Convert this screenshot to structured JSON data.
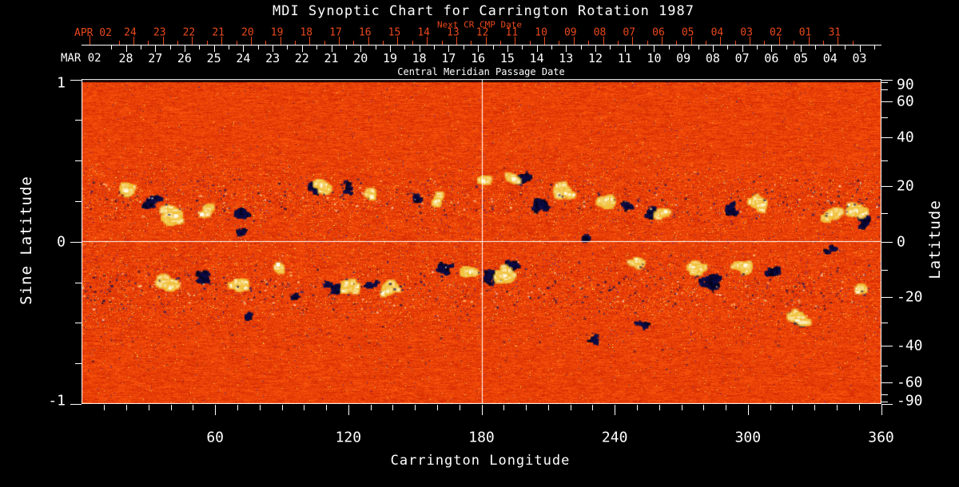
{
  "title": "MDI Synoptic Chart for Carrington Rotation 1987",
  "top_axis": {
    "label": "Next CR CMP Date",
    "month_label": "APR 02",
    "dates": [
      "24",
      "23",
      "22",
      "21",
      "20",
      "19",
      "18",
      "17",
      "16",
      "15",
      "14",
      "13",
      "12",
      "11",
      "10",
      "09",
      "08",
      "07",
      "06",
      "05",
      "04",
      "03",
      "02",
      "01",
      "31"
    ]
  },
  "cmp_axis": {
    "label": "Central Meridian Passage Date",
    "month_label": "MAR 02",
    "dates": [
      "28",
      "27",
      "26",
      "25",
      "24",
      "23",
      "22",
      "21",
      "20",
      "19",
      "18",
      "17",
      "16",
      "15",
      "14",
      "13",
      "12",
      "11",
      "10",
      "09",
      "08",
      "07",
      "06",
      "05",
      "04",
      "03"
    ]
  },
  "x_axis": {
    "label": "Carrington Longitude",
    "major_ticks": [
      "60",
      "120",
      "180",
      "240",
      "300",
      "360"
    ]
  },
  "y_axis_left": {
    "label": "Sine Latitude",
    "major_ticks": [
      "1",
      "0",
      "-1"
    ]
  },
  "y_axis_right": {
    "label": "Latitude",
    "major_ticks": [
      "90",
      "60",
      "40",
      "20",
      "0",
      "-20",
      "-40",
      "-60",
      "-90"
    ]
  },
  "colors": {
    "background": "#000000",
    "foreground": "#ffffff",
    "date_axis_red": "#e8481b",
    "map_base_orange": "#e8440e",
    "map_negative_dark": "#0c0c46",
    "map_positive_bright": "#fffce6",
    "map_positive_fringe": "#f2c23a"
  },
  "chart_data": {
    "type": "heatmap",
    "title": "MDI Synoptic Chart for Carrington Rotation 1987",
    "xlabel": "Carrington Longitude",
    "x_range": [
      0,
      360
    ],
    "x_major_ticks": [
      60,
      120,
      180,
      240,
      300,
      360
    ],
    "x_minor_step": 10,
    "ylabel_left": "Sine Latitude",
    "y_range_sine": [
      -1,
      1
    ],
    "y_left_ticks": [
      1,
      0,
      -1
    ],
    "y_left_minor_step": 0.25,
    "ylabel_right": "Latitude",
    "y_right_ticks": [
      90,
      60,
      40,
      20,
      0,
      -20,
      -40,
      -60,
      -90
    ],
    "y_right_minor_step": 10,
    "top_axis_next_cr_dates_apr_2002": [
      "24",
      "23",
      "22",
      "21",
      "20",
      "19",
      "18",
      "17",
      "16",
      "15",
      "14",
      "13",
      "12",
      "11",
      "10",
      "09",
      "08",
      "07",
      "06",
      "05",
      "04",
      "03",
      "02",
      "01",
      "31"
    ],
    "cmp_dates_mar_2002": [
      "28",
      "27",
      "26",
      "25",
      "24",
      "23",
      "22",
      "21",
      "20",
      "19",
      "18",
      "17",
      "16",
      "15",
      "14",
      "13",
      "12",
      "11",
      "10",
      "09",
      "08",
      "07",
      "06",
      "05",
      "04",
      "03"
    ],
    "reference_lines": {
      "longitude": 180,
      "latitude": 0
    },
    "colormap": "red-temperature: orange quiet sun, dark navy = negative polarity flux, white/yellow = positive polarity flux",
    "active_regions": [
      {
        "lon": 33,
        "sin_lat": 0.24,
        "polarity": "negative",
        "size": 2
      },
      {
        "lon": 55,
        "sin_lat": -0.23,
        "polarity": "negative",
        "size": 2
      },
      {
        "lon": 70,
        "sin_lat": 0.15,
        "polarity": "negative",
        "size": 2
      },
      {
        "lon": 72,
        "sin_lat": 0.05,
        "polarity": "negative",
        "size": 1
      },
      {
        "lon": 75,
        "sin_lat": -0.45,
        "polarity": "negative",
        "size": 1
      },
      {
        "lon": 105,
        "sin_lat": 0.36,
        "polarity": "negative",
        "size": 2
      },
      {
        "lon": 114,
        "sin_lat": -0.28,
        "polarity": "negative",
        "size": 2
      },
      {
        "lon": 132,
        "sin_lat": -0.26,
        "polarity": "negative",
        "size": 1
      },
      {
        "lon": 150,
        "sin_lat": 0.26,
        "polarity": "negative",
        "size": 1
      },
      {
        "lon": 163,
        "sin_lat": -0.16,
        "polarity": "negative",
        "size": 2
      },
      {
        "lon": 183,
        "sin_lat": -0.21,
        "polarity": "negative",
        "size": 2
      },
      {
        "lon": 193,
        "sin_lat": -0.17,
        "polarity": "negative",
        "size": 2
      },
      {
        "lon": 199,
        "sin_lat": 0.38,
        "polarity": "negative",
        "size": 2
      },
      {
        "lon": 205,
        "sin_lat": 0.21,
        "polarity": "negative",
        "size": 2
      },
      {
        "lon": 226,
        "sin_lat": 0.0,
        "polarity": "negative",
        "size": 1
      },
      {
        "lon": 231,
        "sin_lat": -0.6,
        "polarity": "negative",
        "size": 1
      },
      {
        "lon": 251,
        "sin_lat": -0.52,
        "polarity": "negative",
        "size": 1
      },
      {
        "lon": 258,
        "sin_lat": 0.16,
        "polarity": "negative",
        "size": 2
      },
      {
        "lon": 283,
        "sin_lat": -0.24,
        "polarity": "negative",
        "size": 3
      },
      {
        "lon": 294,
        "sin_lat": 0.21,
        "polarity": "negative",
        "size": 2
      },
      {
        "lon": 310,
        "sin_lat": -0.2,
        "polarity": "negative",
        "size": 2
      },
      {
        "lon": 323,
        "sin_lat": -0.52,
        "polarity": "negative",
        "size": 1
      },
      {
        "lon": 335,
        "sin_lat": -0.05,
        "polarity": "negative",
        "size": 1
      },
      {
        "lon": 352,
        "sin_lat": 0.14,
        "polarity": "negative",
        "size": 2
      },
      {
        "lon": 20,
        "sin_lat": 0.3,
        "polarity": "negative",
        "size": 1
      },
      {
        "lon": 97,
        "sin_lat": -0.35,
        "polarity": "negative",
        "size": 1
      },
      {
        "lon": 120,
        "sin_lat": 0.3,
        "polarity": "negative",
        "size": 1
      },
      {
        "lon": 245,
        "sin_lat": 0.2,
        "polarity": "negative",
        "size": 1
      },
      {
        "lon": 21,
        "sin_lat": 0.31,
        "polarity": "positive",
        "size": 2
      },
      {
        "lon": 40,
        "sin_lat": 0.16,
        "polarity": "positive",
        "size": 3
      },
      {
        "lon": 40,
        "sin_lat": -0.26,
        "polarity": "positive",
        "size": 2
      },
      {
        "lon": 58,
        "sin_lat": 0.2,
        "polarity": "positive",
        "size": 1
      },
      {
        "lon": 71,
        "sin_lat": -0.28,
        "polarity": "positive",
        "size": 2
      },
      {
        "lon": 88,
        "sin_lat": -0.15,
        "polarity": "positive",
        "size": 1
      },
      {
        "lon": 109,
        "sin_lat": 0.32,
        "polarity": "positive",
        "size": 2
      },
      {
        "lon": 121,
        "sin_lat": -0.26,
        "polarity": "positive",
        "size": 2
      },
      {
        "lon": 130,
        "sin_lat": 0.28,
        "polarity": "positive",
        "size": 1
      },
      {
        "lon": 139,
        "sin_lat": -0.3,
        "polarity": "positive",
        "size": 2
      },
      {
        "lon": 159,
        "sin_lat": 0.26,
        "polarity": "positive",
        "size": 1
      },
      {
        "lon": 174,
        "sin_lat": -0.2,
        "polarity": "positive",
        "size": 2
      },
      {
        "lon": 183,
        "sin_lat": 0.36,
        "polarity": "positive",
        "size": 1
      },
      {
        "lon": 190,
        "sin_lat": -0.2,
        "polarity": "positive",
        "size": 3
      },
      {
        "lon": 193,
        "sin_lat": 0.38,
        "polarity": "positive",
        "size": 1
      },
      {
        "lon": 215,
        "sin_lat": 0.31,
        "polarity": "positive",
        "size": 2
      },
      {
        "lon": 237,
        "sin_lat": 0.24,
        "polarity": "positive",
        "size": 2
      },
      {
        "lon": 247,
        "sin_lat": -0.13,
        "polarity": "positive",
        "size": 1
      },
      {
        "lon": 264,
        "sin_lat": 0.18,
        "polarity": "positive",
        "size": 1
      },
      {
        "lon": 276,
        "sin_lat": -0.16,
        "polarity": "positive",
        "size": 2
      },
      {
        "lon": 298,
        "sin_lat": -0.16,
        "polarity": "positive",
        "size": 2
      },
      {
        "lon": 305,
        "sin_lat": 0.24,
        "polarity": "positive",
        "size": 2
      },
      {
        "lon": 323,
        "sin_lat": -0.48,
        "polarity": "positive",
        "size": 2
      },
      {
        "lon": 337,
        "sin_lat": 0.16,
        "polarity": "positive",
        "size": 2
      },
      {
        "lon": 350,
        "sin_lat": 0.21,
        "polarity": "positive",
        "size": 2
      },
      {
        "lon": 352,
        "sin_lat": -0.3,
        "polarity": "positive",
        "size": 1
      }
    ]
  }
}
